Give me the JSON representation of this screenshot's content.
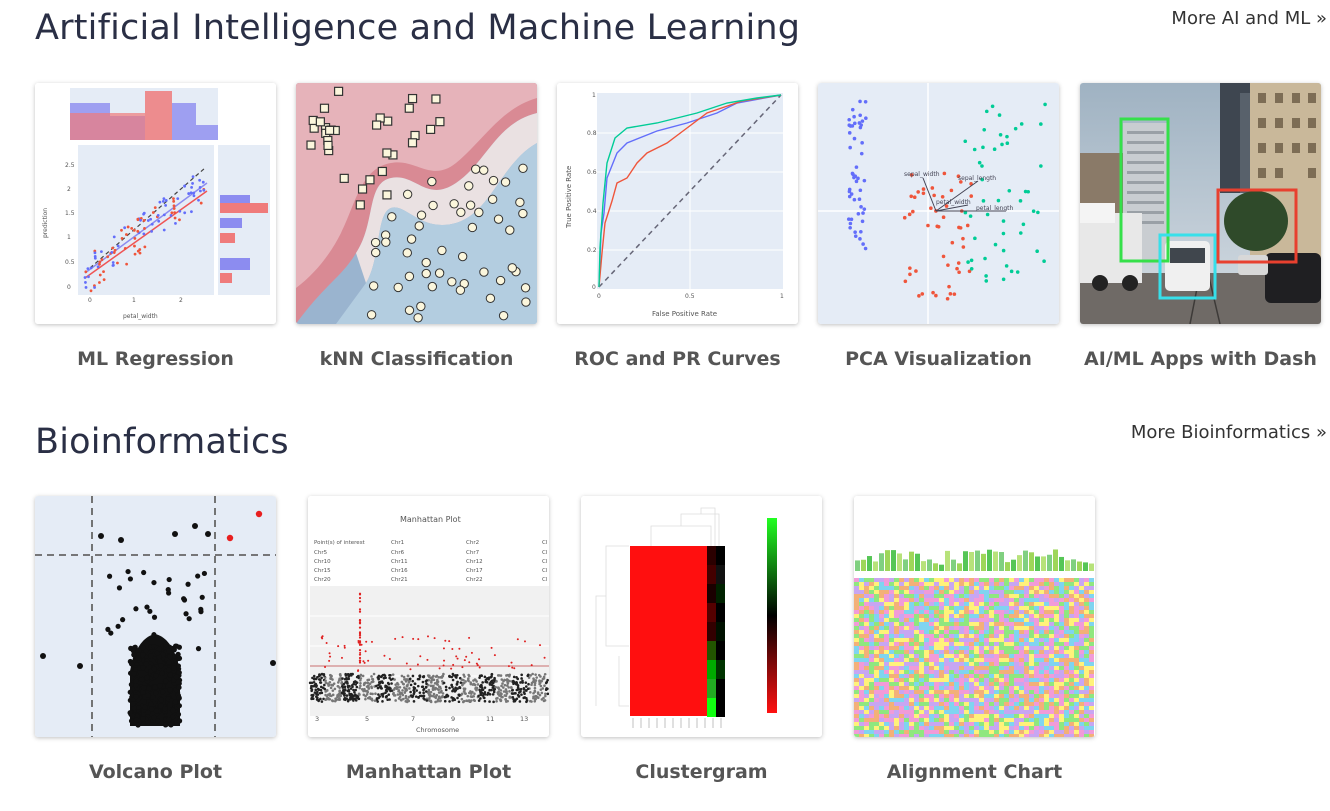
{
  "sections": [
    {
      "title": "Artificial Intelligence and Machine Learning",
      "more_link": "More AI and ML »",
      "cards": [
        {
          "label": "ML Regression"
        },
        {
          "label": "kNN Classification"
        },
        {
          "label": "ROC and PR Curves"
        },
        {
          "label": "PCA Visualization"
        },
        {
          "label": "AI/ML Apps with Dash"
        }
      ]
    },
    {
      "title": "Bioinformatics",
      "more_link": "More Bioinformatics »",
      "cards": [
        {
          "label": "Volcano Plot"
        },
        {
          "label": "Manhattan Plot"
        },
        {
          "label": "Clustergram"
        },
        {
          "label": "Alignment Chart"
        }
      ]
    }
  ],
  "thumbs": {
    "regression": {
      "xlabel": "petal_width",
      "ylabel": "prediction",
      "yticks": [
        "2.5",
        "2",
        "1.5",
        "1",
        "0.5",
        "0"
      ],
      "xticks": [
        "0",
        "1",
        "2"
      ]
    },
    "roc": {
      "xlabel": "False Positive Rate",
      "ylabel": "True Positive Rate",
      "yticks": [
        "1",
        "0.8",
        "0.6",
        "0.4",
        "0.2",
        "0"
      ],
      "xticks": [
        "0",
        "0.5",
        "1"
      ]
    },
    "pca": {
      "arrow_labels": [
        "sepal_width",
        "sepal_length",
        "petal_width",
        "petal_length"
      ]
    },
    "manhattan": {
      "title": "Manhattan Plot",
      "legend": [
        "Point(s) of interest",
        "Chr5",
        "Chr10",
        "Chr15",
        "Chr20",
        "Chr1",
        "Chr6",
        "Chr11",
        "Chr16",
        "Chr21",
        "Chr2",
        "Chr7",
        "Chr12",
        "Chr17",
        "Chr22",
        "Cl",
        "Cl",
        "Cl",
        "Cl",
        "Cl"
      ],
      "xticks": [
        "3",
        "5",
        "7",
        "9",
        "11",
        "13"
      ],
      "xlabel": "Chromosome"
    }
  }
}
